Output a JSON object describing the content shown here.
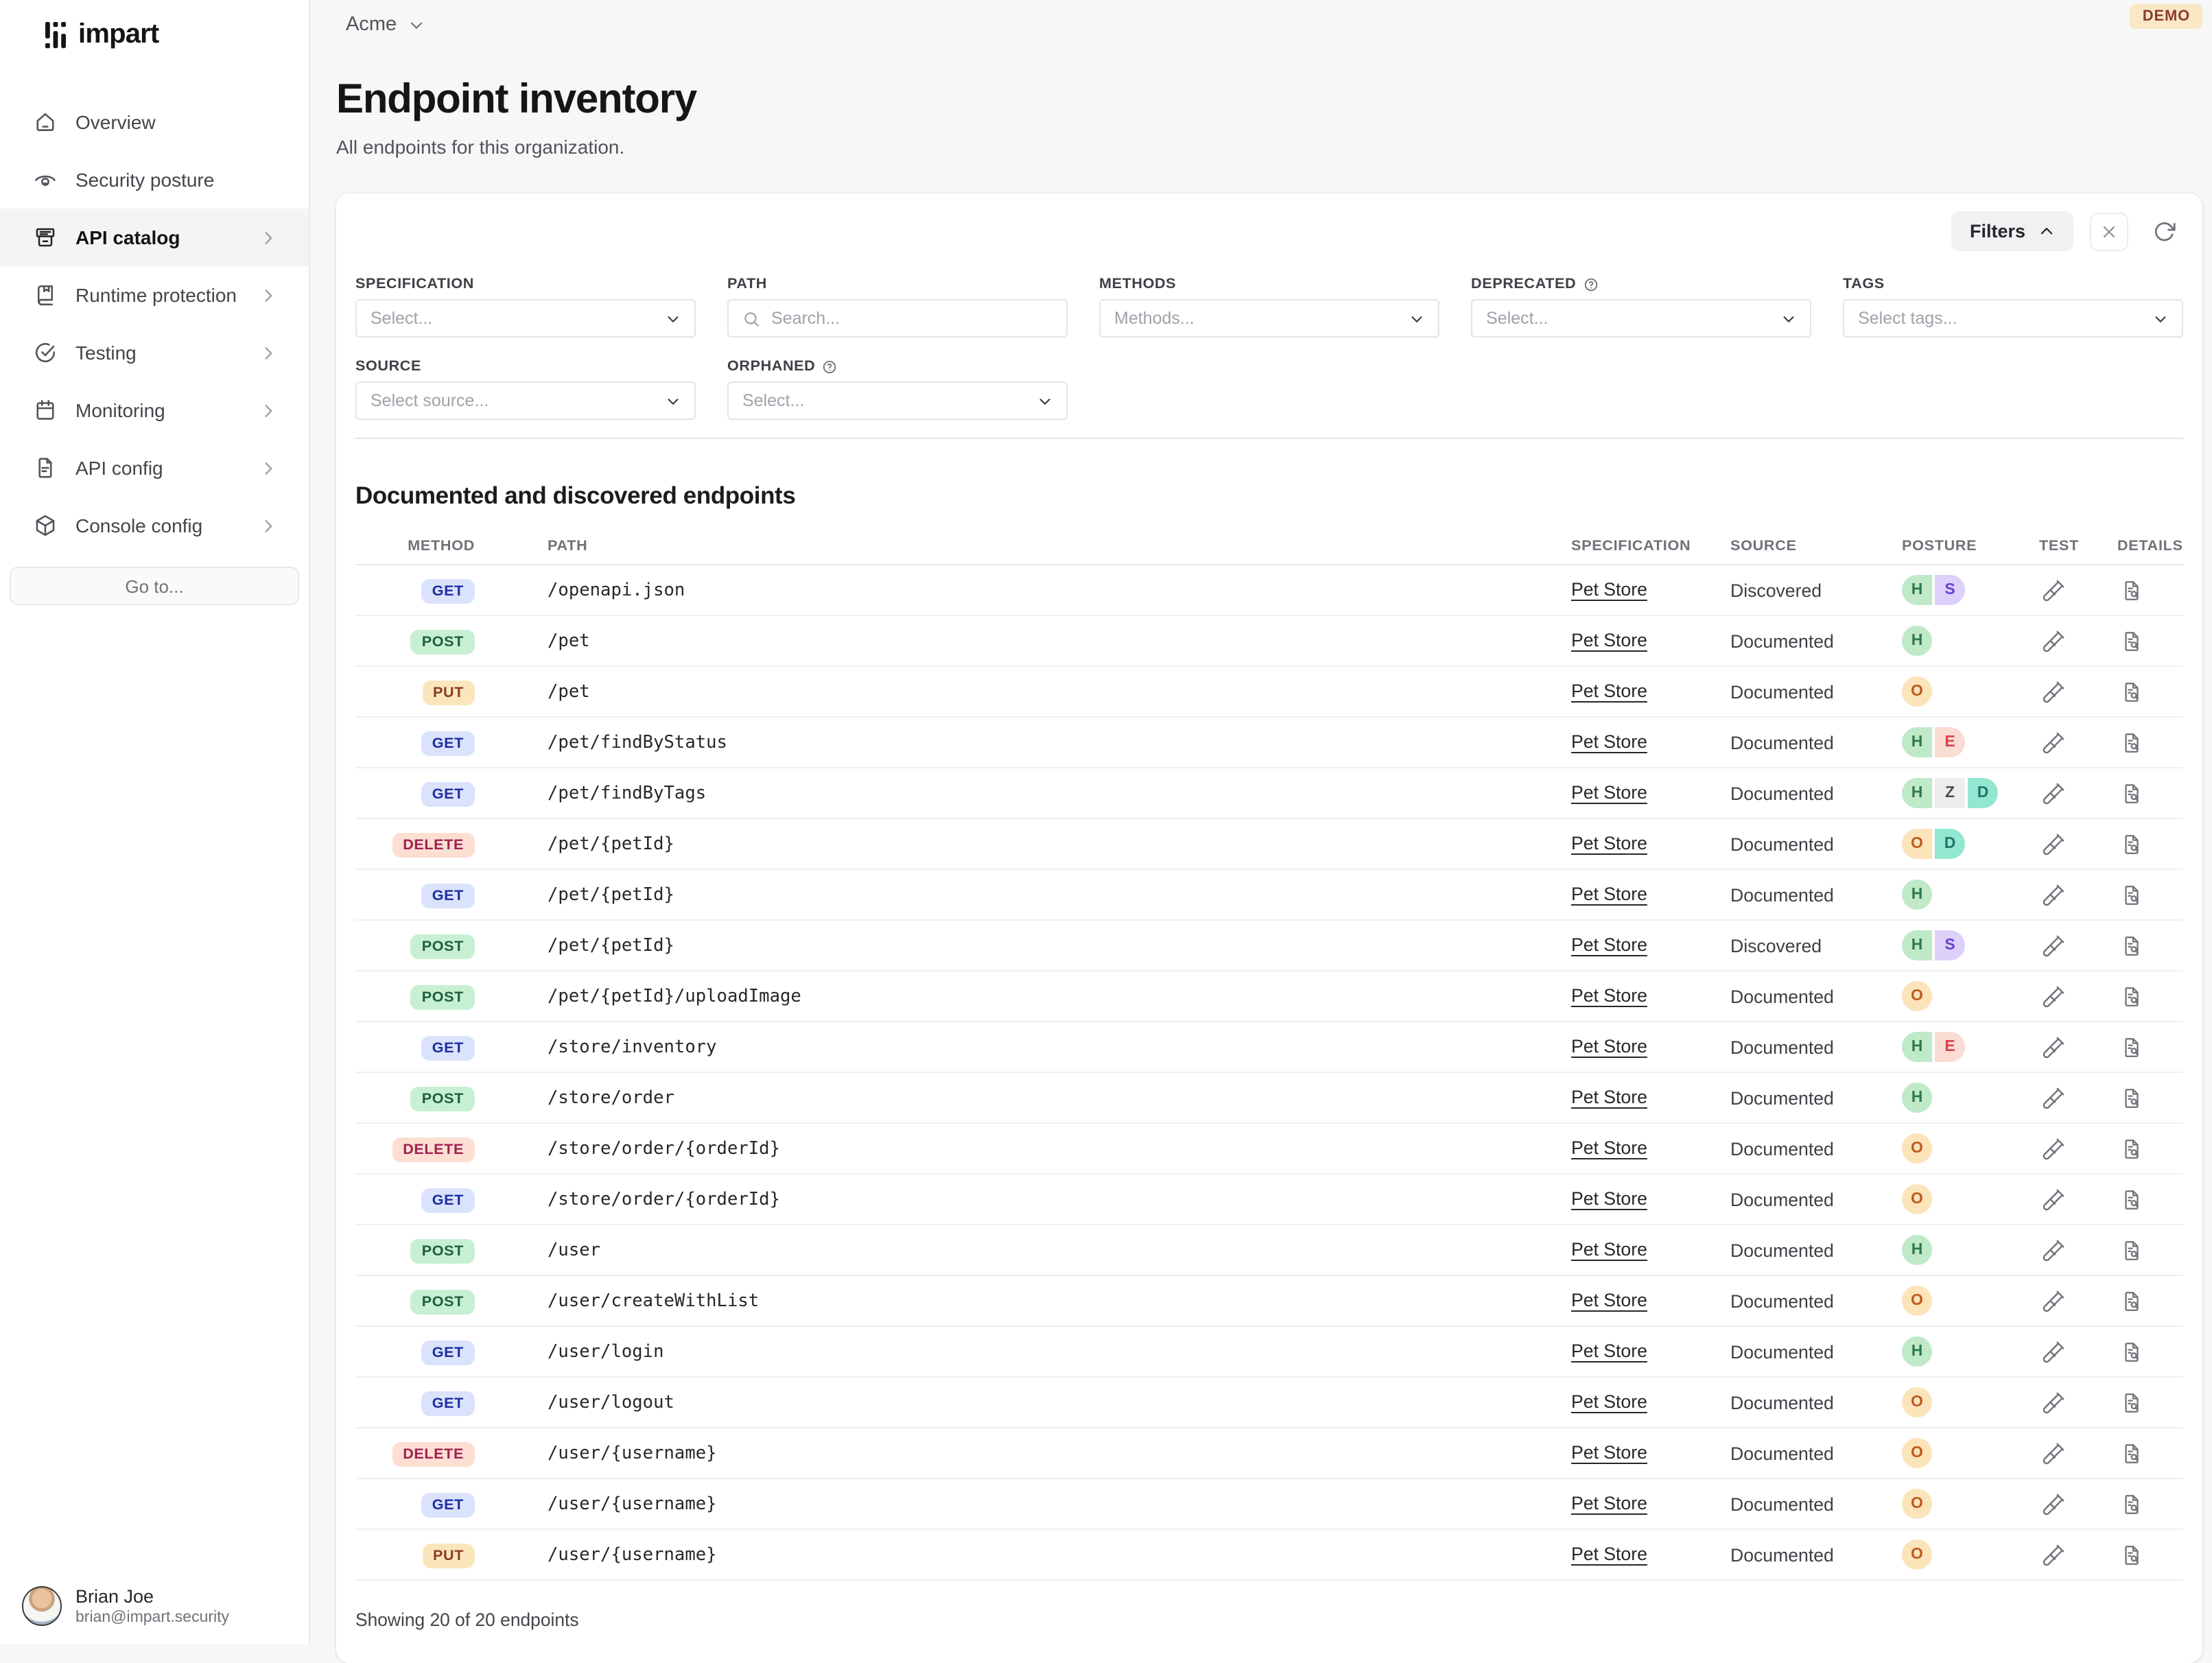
{
  "brand": {
    "name": "impart",
    "logomark_icon": "impart-logomark-icon"
  },
  "topbar": {
    "org": "Acme",
    "org_chevron_icon": "chevron-down-icon",
    "demo_badge": "DEMO",
    "demo_badge_colors": {
      "background": "#f9e8c3",
      "text": "#8c3a30"
    }
  },
  "sidebar": {
    "items": [
      {
        "label": "Overview",
        "icon": "home-icon",
        "chevron": false,
        "active": false
      },
      {
        "label": "Security posture",
        "icon": "eye-icon",
        "chevron": false,
        "active": false
      },
      {
        "label": "API catalog",
        "icon": "archive-icon",
        "chevron": true,
        "active": true
      },
      {
        "label": "Runtime protection",
        "icon": "book-icon",
        "chevron": true,
        "active": false
      },
      {
        "label": "Testing",
        "icon": "check-circle-icon",
        "chevron": true,
        "active": false
      },
      {
        "label": "Monitoring",
        "icon": "calendar-icon",
        "chevron": true,
        "active": false
      },
      {
        "label": "API config",
        "icon": "file-text-icon",
        "chevron": true,
        "active": false
      },
      {
        "label": "Console config",
        "icon": "cube-icon",
        "chevron": true,
        "active": false
      }
    ],
    "goto_label": "Go to...",
    "user": {
      "name": "Brian Joe",
      "email": "brian@impart.security"
    }
  },
  "page": {
    "title": "Endpoint inventory",
    "subtitle": "All endpoints for this organization."
  },
  "filters": {
    "toggle_label": "Filters",
    "toggle_icon": "chevron-up-icon",
    "clear_icon": "close-icon",
    "refresh_icon": "refresh-icon",
    "fields": {
      "specification": {
        "label": "SPECIFICATION",
        "placeholder": "Select...",
        "help": false
      },
      "path": {
        "label": "PATH",
        "placeholder": "Search...",
        "icon": "search-icon",
        "value": "",
        "help": false
      },
      "methods": {
        "label": "METHODS",
        "placeholder": "Methods...",
        "help": false
      },
      "deprecated": {
        "label": "DEPRECATED",
        "placeholder": "Select...",
        "help": true,
        "help_icon": "help-circle-icon"
      },
      "tags": {
        "label": "TAGS",
        "placeholder": "Select tags...",
        "help": false
      },
      "source": {
        "label": "SOURCE",
        "placeholder": "Select source...",
        "help": false
      },
      "orphaned": {
        "label": "ORPHANED",
        "placeholder": "Select...",
        "help": true,
        "help_icon": "help-circle-icon"
      }
    }
  },
  "table": {
    "heading": "Documented and discovered endpoints",
    "columns": [
      "METHOD",
      "PATH",
      "SPECIFICATION",
      "SOURCE",
      "POSTURE",
      "TEST",
      "DETAILS"
    ],
    "row_action_icons": {
      "test": "test-tube-icon",
      "details": "file-search-icon"
    },
    "method_colors": {
      "GET": {
        "background": "#dbe2fc",
        "text": "#1e2f9e"
      },
      "POST": {
        "background": "#c7f0d3",
        "text": "#1f5f3b"
      },
      "PUT": {
        "background": "#fbe6bb",
        "text": "#8a3c20"
      },
      "DELETE": {
        "background": "#fcded3",
        "text": "#9e2150"
      }
    },
    "posture_colors": {
      "H": {
        "background": "#bfe9c9",
        "text": "#2f7a4d"
      },
      "S": {
        "background": "#ddd1fa",
        "text": "#6a3fd2"
      },
      "O": {
        "background": "#fbe4ba",
        "text": "#bf5a1f"
      },
      "E": {
        "background": "#f9dcd3",
        "text": "#d8434e"
      },
      "Z": {
        "background": "#ededee",
        "text": "#4f4f56"
      },
      "D": {
        "background": "#93e7d1",
        "text": "#1f7568"
      }
    },
    "rows": [
      {
        "method": "GET",
        "path": "/openapi.json",
        "spec": "Pet Store",
        "source": "Discovered",
        "posture": [
          "H",
          "S"
        ]
      },
      {
        "method": "POST",
        "path": "/pet",
        "spec": "Pet Store",
        "source": "Documented",
        "posture": [
          "H"
        ]
      },
      {
        "method": "PUT",
        "path": "/pet",
        "spec": "Pet Store",
        "source": "Documented",
        "posture": [
          "O"
        ]
      },
      {
        "method": "GET",
        "path": "/pet/findByStatus",
        "spec": "Pet Store",
        "source": "Documented",
        "posture": [
          "H",
          "E"
        ]
      },
      {
        "method": "GET",
        "path": "/pet/findByTags",
        "spec": "Pet Store",
        "source": "Documented",
        "posture": [
          "H",
          "Z",
          "D"
        ]
      },
      {
        "method": "DELETE",
        "path": "/pet/{petId}",
        "spec": "Pet Store",
        "source": "Documented",
        "posture": [
          "O",
          "D"
        ]
      },
      {
        "method": "GET",
        "path": "/pet/{petId}",
        "spec": "Pet Store",
        "source": "Documented",
        "posture": [
          "H"
        ]
      },
      {
        "method": "POST",
        "path": "/pet/{petId}",
        "spec": "Pet Store",
        "source": "Discovered",
        "posture": [
          "H",
          "S"
        ]
      },
      {
        "method": "POST",
        "path": "/pet/{petId}/uploadImage",
        "spec": "Pet Store",
        "source": "Documented",
        "posture": [
          "O"
        ]
      },
      {
        "method": "GET",
        "path": "/store/inventory",
        "spec": "Pet Store",
        "source": "Documented",
        "posture": [
          "H",
          "E"
        ]
      },
      {
        "method": "POST",
        "path": "/store/order",
        "spec": "Pet Store",
        "source": "Documented",
        "posture": [
          "H"
        ]
      },
      {
        "method": "DELETE",
        "path": "/store/order/{orderId}",
        "spec": "Pet Store",
        "source": "Documented",
        "posture": [
          "O"
        ]
      },
      {
        "method": "GET",
        "path": "/store/order/{orderId}",
        "spec": "Pet Store",
        "source": "Documented",
        "posture": [
          "O"
        ]
      },
      {
        "method": "POST",
        "path": "/user",
        "spec": "Pet Store",
        "source": "Documented",
        "posture": [
          "H"
        ]
      },
      {
        "method": "POST",
        "path": "/user/createWithList",
        "spec": "Pet Store",
        "source": "Documented",
        "posture": [
          "O"
        ]
      },
      {
        "method": "GET",
        "path": "/user/login",
        "spec": "Pet Store",
        "source": "Documented",
        "posture": [
          "H"
        ]
      },
      {
        "method": "GET",
        "path": "/user/logout",
        "spec": "Pet Store",
        "source": "Documented",
        "posture": [
          "O"
        ]
      },
      {
        "method": "DELETE",
        "path": "/user/{username}",
        "spec": "Pet Store",
        "source": "Documented",
        "posture": [
          "O"
        ]
      },
      {
        "method": "GET",
        "path": "/user/{username}",
        "spec": "Pet Store",
        "source": "Documented",
        "posture": [
          "O"
        ]
      },
      {
        "method": "PUT",
        "path": "/user/{username}",
        "spec": "Pet Store",
        "source": "Documented",
        "posture": [
          "O"
        ]
      }
    ],
    "footer": "Showing 20 of 20 endpoints"
  }
}
